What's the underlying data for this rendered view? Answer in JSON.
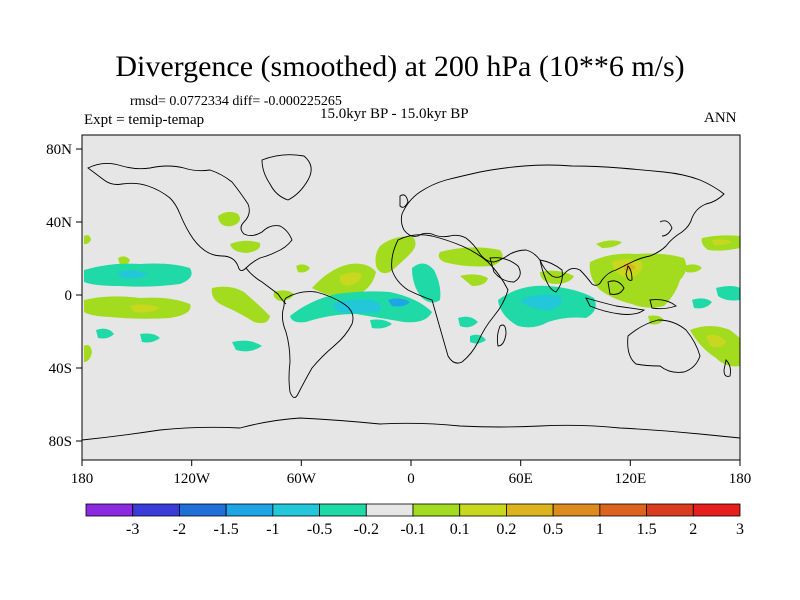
{
  "title": "Divergence (smoothed) at 200 hPa (10**6 m/s)",
  "stats": "rmsd= 0.0772334 diff= -0.000225265",
  "expt": "Expt = temip-temap",
  "period": "15.0kyr BP - 15.0kyr BP",
  "season": "ANN",
  "map": {
    "background_color": "#e6e6e6",
    "lon_labels": [
      "180",
      "120W",
      "60W",
      "0",
      "60E",
      "120E",
      "180"
    ],
    "lat_labels": [
      "80N",
      "40N",
      "0",
      "40S",
      "80S"
    ]
  },
  "colorbar": {
    "colors": [
      "#8a2be2",
      "#3b3bd9",
      "#1f6fd9",
      "#1ea5e6",
      "#22c7d9",
      "#1fd9a6",
      "#e6e6e6",
      "#a3dc1e",
      "#c8d81e",
      "#dcb41e",
      "#dc8c1e",
      "#dc641e",
      "#dc3c1e",
      "#e61e1e"
    ],
    "labels": [
      "-3",
      "-2",
      "-1.5",
      "-1",
      "-0.5",
      "-0.2",
      "-0.1",
      "0.1",
      "0.2",
      "0.5",
      "1",
      "1.5",
      "2",
      "3"
    ]
  }
}
